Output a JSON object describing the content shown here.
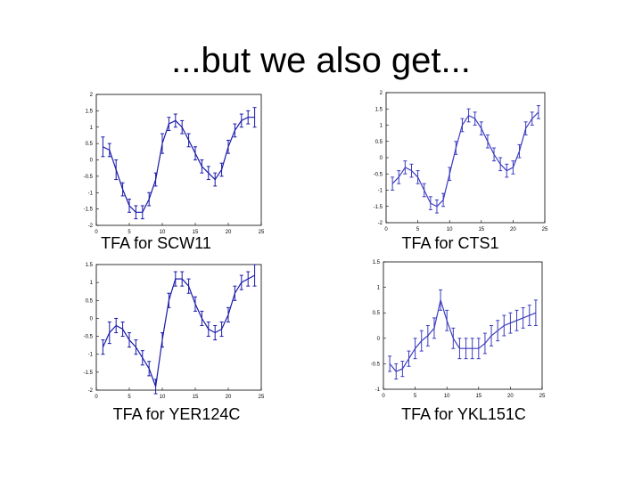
{
  "title": "...but we also get...",
  "chart_data": [
    {
      "type": "line",
      "caption": "TFA for SCW11",
      "color": "#1a1aaa",
      "xlim": [
        0,
        25
      ],
      "ylim": [
        -2,
        2
      ],
      "xticks": [
        "0",
        "5",
        "10",
        "15",
        "20",
        "25"
      ],
      "yticks": [
        "2",
        "1.5",
        "1",
        "0.5",
        "0",
        "-0.5",
        "-1",
        "-1.5",
        "-2"
      ],
      "x": [
        1,
        2,
        3,
        4,
        5,
        6,
        7,
        8,
        9,
        10,
        11,
        12,
        13,
        14,
        15,
        16,
        17,
        18,
        19,
        20,
        21,
        22,
        23,
        24
      ],
      "values": [
        0.4,
        0.3,
        -0.3,
        -0.9,
        -1.4,
        -1.6,
        -1.6,
        -1.2,
        -0.6,
        0.5,
        1.1,
        1.2,
        1.0,
        0.6,
        0.2,
        -0.2,
        -0.4,
        -0.6,
        -0.3,
        0.4,
        0.9,
        1.2,
        1.3,
        1.3
      ],
      "errors": [
        0.3,
        0.2,
        0.3,
        0.2,
        0.2,
        0.2,
        0.2,
        0.2,
        0.2,
        0.3,
        0.2,
        0.2,
        0.2,
        0.2,
        0.2,
        0.2,
        0.2,
        0.2,
        0.2,
        0.2,
        0.2,
        0.2,
        0.2,
        0.3
      ]
    },
    {
      "type": "line",
      "caption": "TFA for CTS1",
      "color": "#3c3cc0",
      "xlim": [
        0,
        25
      ],
      "ylim": [
        -2,
        2
      ],
      "xticks": [
        "0",
        "5",
        "10",
        "15",
        "20",
        "25"
      ],
      "yticks": [
        "2",
        "1.5",
        "1",
        "0.5",
        "0",
        "-0.5",
        "-1",
        "-1.5",
        "-2"
      ],
      "x": [
        1,
        2,
        3,
        4,
        5,
        6,
        7,
        8,
        9,
        10,
        11,
        12,
        13,
        14,
        15,
        16,
        17,
        18,
        19,
        20,
        21,
        22,
        23,
        24
      ],
      "values": [
        -0.8,
        -0.6,
        -0.3,
        -0.4,
        -0.6,
        -1.0,
        -1.4,
        -1.5,
        -1.3,
        -0.5,
        0.3,
        1.0,
        1.3,
        1.2,
        0.9,
        0.5,
        0.1,
        -0.2,
        -0.4,
        -0.3,
        0.2,
        0.9,
        1.2,
        1.4
      ],
      "errors": [
        0.2,
        0.2,
        0.2,
        0.2,
        0.2,
        0.2,
        0.2,
        0.2,
        0.2,
        0.2,
        0.2,
        0.2,
        0.2,
        0.2,
        0.2,
        0.2,
        0.2,
        0.2,
        0.2,
        0.2,
        0.2,
        0.2,
        0.2,
        0.2
      ]
    },
    {
      "type": "line",
      "caption": "TFA for YER124C",
      "color": "#1a1aaa",
      "xlim": [
        0,
        25
      ],
      "ylim": [
        -2,
        1.5
      ],
      "xticks": [
        "0",
        "5",
        "10",
        "15",
        "20",
        "25"
      ],
      "yticks": [
        "1.5",
        "1",
        "0.5",
        "0",
        "-0.5",
        "-1",
        "-1.5",
        "-2"
      ],
      "x": [
        1,
        2,
        3,
        4,
        5,
        6,
        7,
        8,
        9,
        10,
        11,
        12,
        13,
        14,
        15,
        16,
        17,
        18,
        19,
        20,
        21,
        22,
        23,
        24
      ],
      "values": [
        -0.8,
        -0.4,
        -0.2,
        -0.3,
        -0.6,
        -0.8,
        -1.1,
        -1.4,
        -1.9,
        -0.6,
        0.5,
        1.1,
        1.1,
        0.9,
        0.4,
        0.0,
        -0.3,
        -0.4,
        -0.3,
        0.1,
        0.7,
        1.0,
        1.1,
        1.2
      ],
      "errors": [
        0.2,
        0.3,
        0.2,
        0.2,
        0.2,
        0.2,
        0.2,
        0.2,
        0.2,
        0.2,
        0.2,
        0.2,
        0.2,
        0.2,
        0.2,
        0.2,
        0.2,
        0.2,
        0.2,
        0.2,
        0.2,
        0.2,
        0.2,
        0.3
      ]
    },
    {
      "type": "line",
      "caption": "TFA for YKL151C",
      "color": "#3c3cc0",
      "xlim": [
        0,
        25
      ],
      "ylim": [
        -1,
        1.5
      ],
      "xticks": [
        "0",
        "5",
        "10",
        "15",
        "20",
        "25"
      ],
      "yticks": [
        "1.5",
        "1",
        "0.5",
        "0",
        "-0.5",
        "-1"
      ],
      "x": [
        1,
        2,
        3,
        4,
        5,
        6,
        7,
        8,
        9,
        10,
        11,
        12,
        13,
        14,
        15,
        16,
        17,
        18,
        19,
        20,
        21,
        22,
        23,
        24
      ],
      "values": [
        -0.5,
        -0.65,
        -0.6,
        -0.4,
        -0.2,
        -0.05,
        0.05,
        0.2,
        0.75,
        0.35,
        0.0,
        -0.2,
        -0.2,
        -0.2,
        -0.2,
        -0.1,
        0.05,
        0.15,
        0.25,
        0.3,
        0.35,
        0.4,
        0.45,
        0.5
      ],
      "errors": [
        0.15,
        0.15,
        0.15,
        0.15,
        0.2,
        0.2,
        0.2,
        0.2,
        0.2,
        0.2,
        0.2,
        0.2,
        0.2,
        0.2,
        0.2,
        0.2,
        0.2,
        0.2,
        0.2,
        0.2,
        0.2,
        0.2,
        0.2,
        0.25
      ]
    }
  ]
}
